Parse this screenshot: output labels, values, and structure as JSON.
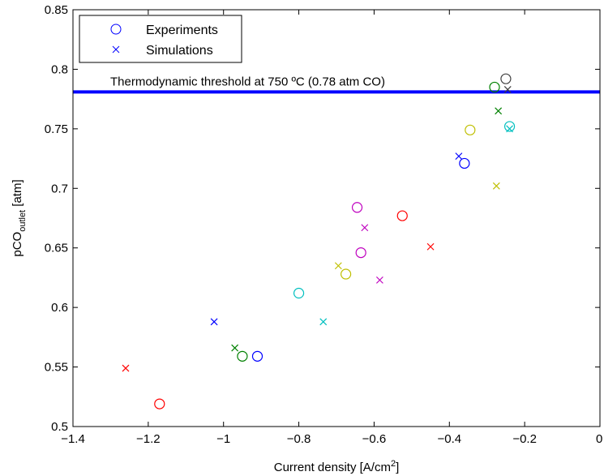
{
  "chart_data": {
    "type": "scatter",
    "xlabel": "Current density [A/cm",
    "xlabel_sup": "2",
    "xlabel_end": "]",
    "ylabel": "pCO",
    "ylabel_sub": "outlet",
    "ylabel_end": " [atm]",
    "xlim": [
      -1.4,
      0
    ],
    "ylim": [
      0.5,
      0.85
    ],
    "x_ticks": [
      -1.4,
      -1.2,
      -1.0,
      -0.8,
      -0.6,
      -0.4,
      -0.2,
      0
    ],
    "x_tick_labels": [
      "−1.4",
      "−1.2",
      "−1",
      "−0.8",
      "−0.6",
      "−0.4",
      "−0.2",
      "0"
    ],
    "y_ticks": [
      0.5,
      0.55,
      0.6,
      0.65,
      0.7,
      0.75,
      0.8,
      0.85
    ],
    "y_tick_labels": [
      "0.5",
      "0.55",
      "0.6",
      "0.65",
      "0.7",
      "0.75",
      "0.8",
      "0.85"
    ],
    "grid": false,
    "legend_position": "top-left",
    "legend": [
      {
        "label": "Experiments",
        "marker": "circle",
        "color": "#0000ff"
      },
      {
        "label": "Simulations",
        "marker": "x",
        "color": "#0000ff"
      }
    ],
    "threshold": {
      "y": 0.781,
      "color": "#0000ff",
      "label": "Thermodynamic threshold at 750 ºC (0.78 atm CO)"
    },
    "series": [
      {
        "marker": "circle",
        "points": [
          {
            "x": -1.17,
            "y": 0.519,
            "color": "#ff0000"
          },
          {
            "x": -0.95,
            "y": 0.559,
            "color": "#008000"
          },
          {
            "x": -0.91,
            "y": 0.559,
            "color": "#0000ff"
          },
          {
            "x": -0.8,
            "y": 0.612,
            "color": "#00bfbf"
          },
          {
            "x": -0.675,
            "y": 0.628,
            "color": "#bfbf00"
          },
          {
            "x": -0.645,
            "y": 0.684,
            "color": "#bf00bf"
          },
          {
            "x": -0.635,
            "y": 0.646,
            "color": "#bf00bf"
          },
          {
            "x": -0.525,
            "y": 0.677,
            "color": "#ff0000"
          },
          {
            "x": -0.36,
            "y": 0.721,
            "color": "#0000ff"
          },
          {
            "x": -0.345,
            "y": 0.749,
            "color": "#bfbf00"
          },
          {
            "x": -0.28,
            "y": 0.785,
            "color": "#008000"
          },
          {
            "x": -0.25,
            "y": 0.792,
            "color": "#404040"
          },
          {
            "x": -0.24,
            "y": 0.752,
            "color": "#00bfbf"
          }
        ]
      },
      {
        "marker": "x",
        "points": [
          {
            "x": -1.26,
            "y": 0.549,
            "color": "#ff0000"
          },
          {
            "x": -1.025,
            "y": 0.588,
            "color": "#0000ff"
          },
          {
            "x": -0.97,
            "y": 0.566,
            "color": "#008000"
          },
          {
            "x": -0.735,
            "y": 0.588,
            "color": "#00bfbf"
          },
          {
            "x": -0.695,
            "y": 0.635,
            "color": "#bfbf00"
          },
          {
            "x": -0.625,
            "y": 0.667,
            "color": "#bf00bf"
          },
          {
            "x": -0.585,
            "y": 0.623,
            "color": "#bf00bf"
          },
          {
            "x": -0.45,
            "y": 0.651,
            "color": "#ff0000"
          },
          {
            "x": -0.375,
            "y": 0.727,
            "color": "#0000ff"
          },
          {
            "x": -0.275,
            "y": 0.702,
            "color": "#bfbf00"
          },
          {
            "x": -0.27,
            "y": 0.765,
            "color": "#008000"
          },
          {
            "x": -0.245,
            "y": 0.783,
            "color": "#404040"
          },
          {
            "x": -0.24,
            "y": 0.75,
            "color": "#00bfbf"
          }
        ]
      }
    ]
  }
}
